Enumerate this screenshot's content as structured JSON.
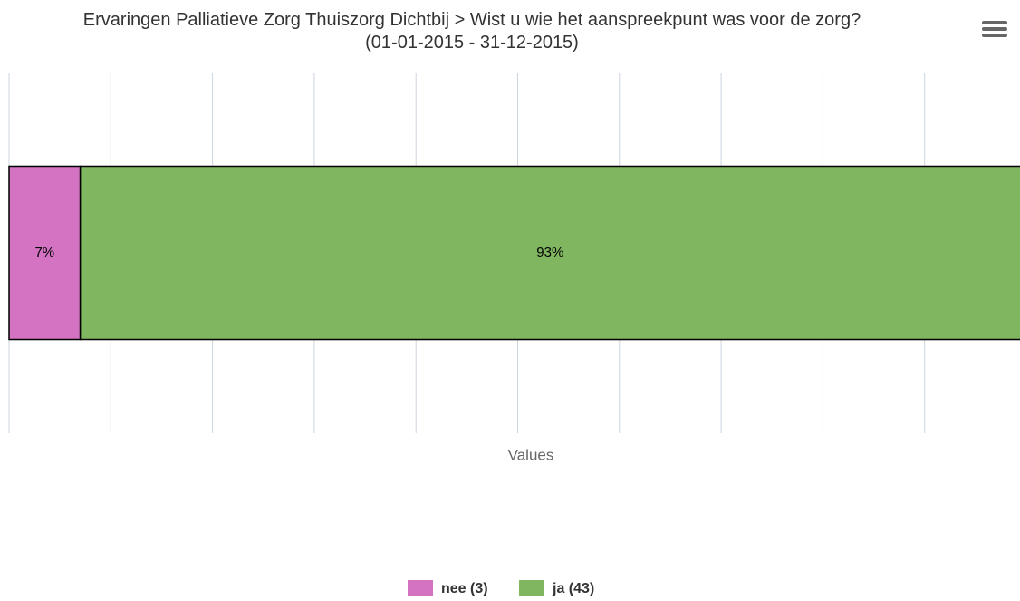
{
  "chart_data": {
    "type": "stacked-bar-horizontal",
    "title": "Ervaringen Palliatieve Zorg Thuiszorg Dichtbij > Wist u wie het aanspreekpunt was voor de zorg?",
    "subtitle": "(01-01-2015 - 31-12-2015)",
    "x_axis_label": "Values",
    "categories": [
      null
    ],
    "series": [
      {
        "name": "nee (3)",
        "color": "#d373c2",
        "values": [
          7
        ],
        "value_labels": [
          "7%"
        ]
      },
      {
        "name": "ja (43)",
        "color": "#80b660",
        "values": [
          93
        ],
        "value_labels": [
          "93%"
        ]
      }
    ],
    "xlim": [
      0,
      100
    ],
    "xticks": [
      0,
      10,
      20,
      30,
      40,
      50,
      60,
      70,
      80,
      90,
      100
    ],
    "grid": true,
    "legend": "bottom"
  }
}
